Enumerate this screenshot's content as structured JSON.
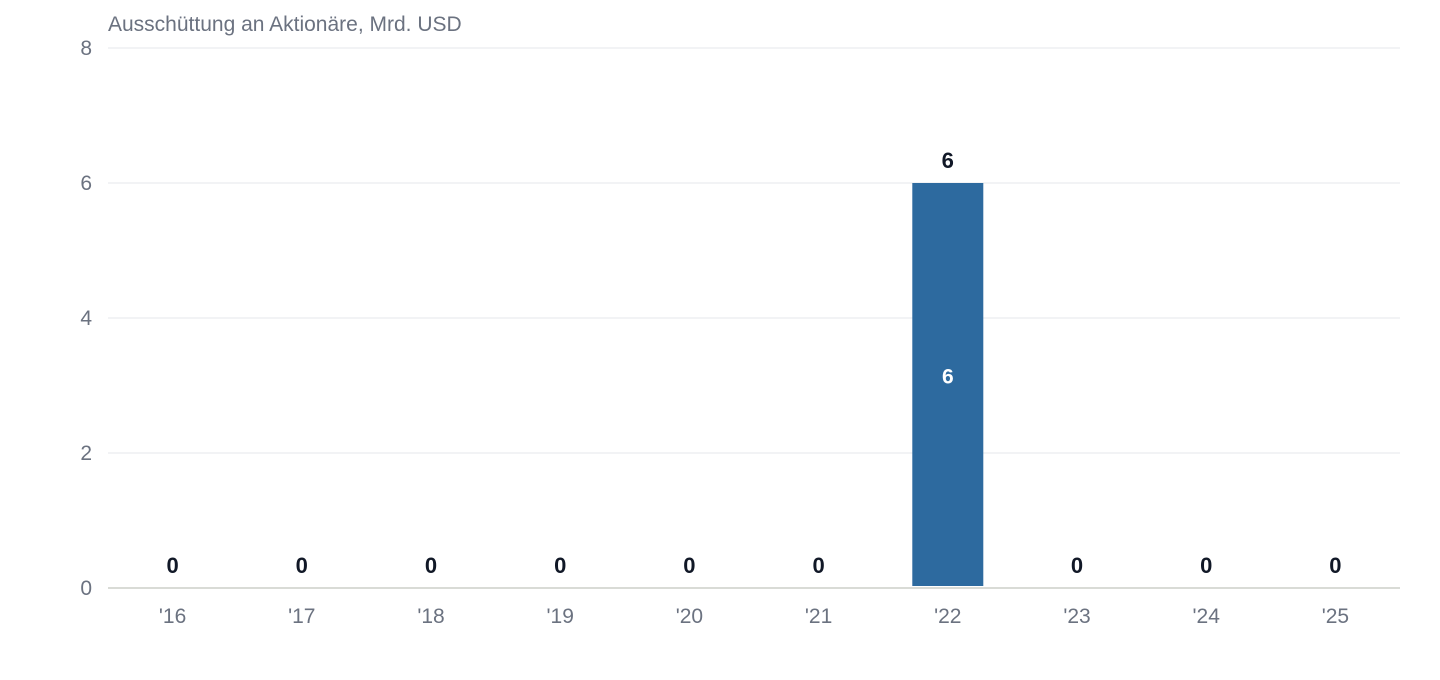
{
  "chart_data": {
    "type": "bar",
    "title": "Ausschüttung an Aktionäre, Mrd. USD",
    "categories": [
      "'16",
      "'17",
      "'18",
      "'19",
      "'20",
      "'21",
      "'22",
      "'23",
      "'24",
      "'25"
    ],
    "values": [
      0,
      0,
      0,
      0,
      0,
      0,
      6,
      0,
      0,
      0
    ],
    "ylim": [
      0,
      8
    ],
    "yticks": [
      0,
      2,
      4,
      6,
      8
    ],
    "grid": true,
    "bar_color": "#2d6a9f"
  }
}
